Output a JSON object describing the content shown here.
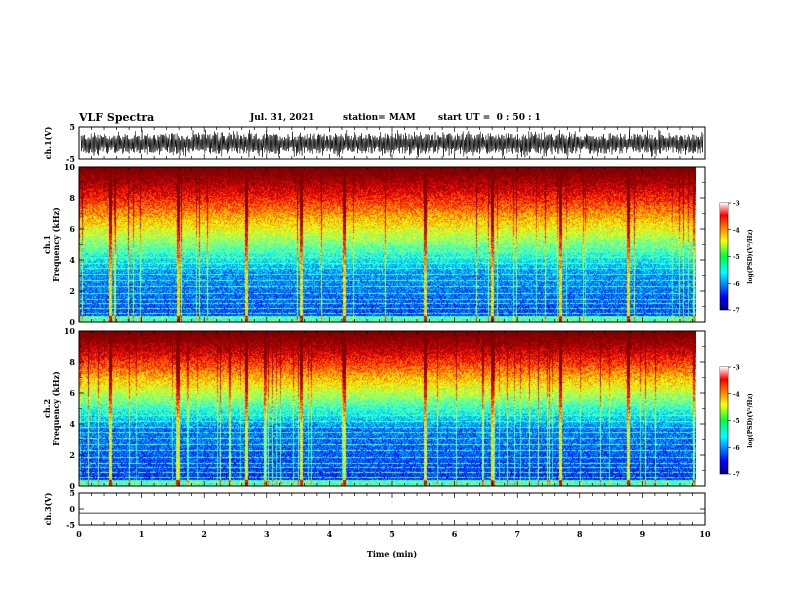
{
  "header": {
    "title": "VLF Spectra",
    "date": "Jul. 31, 2021",
    "station": "station= MAM",
    "start": "start UT =  0 : 50 : 1"
  },
  "chart_data": [
    {
      "type": "line",
      "name": "ch1-waveform",
      "ylabel": "ch.1(V)",
      "ylim": [
        -5,
        5
      ],
      "yticks": [
        "5",
        "-5"
      ],
      "xlim": [
        0,
        10
      ]
    },
    {
      "type": "heatmap",
      "name": "ch1-spectrogram",
      "ylabel": "Frequency (kHz)",
      "channel_label": "ch.1",
      "ylim": [
        0,
        10
      ],
      "yticks": [
        "0",
        "2",
        "4",
        "6",
        "8",
        "10"
      ],
      "xlim": [
        0,
        9.85
      ],
      "colorbar": {
        "label": "log(PSD)(V²/Hz)",
        "range": [
          -7,
          -3
        ],
        "ticks": [
          "-3",
          "-4",
          "-5",
          "-6",
          "-7"
        ]
      }
    },
    {
      "type": "heatmap",
      "name": "ch2-spectrogram",
      "ylabel": "Frequency (kHz)",
      "channel_label": "ch.2",
      "ylim": [
        0,
        10
      ],
      "yticks": [
        "0",
        "2",
        "4",
        "6",
        "8",
        "10"
      ],
      "xlim": [
        0,
        9.85
      ],
      "colorbar": {
        "label": "log(PSD)(V²/Hz)",
        "range": [
          -7,
          -3
        ],
        "ticks": [
          "-3",
          "-4",
          "-5",
          "-6",
          "-7"
        ]
      }
    },
    {
      "type": "line",
      "name": "ch3-waveform",
      "ylabel": "ch.3(V)",
      "ylim": [
        -5,
        5
      ],
      "yticks": [
        "5",
        "0",
        "-5"
      ],
      "level": -1.3,
      "xlim": [
        0,
        10
      ]
    }
  ],
  "xaxis": {
    "label": "Time (min)",
    "ticks": [
      "0",
      "1",
      "2",
      "3",
      "4",
      "5",
      "6",
      "7",
      "8",
      "9",
      "10"
    ]
  }
}
